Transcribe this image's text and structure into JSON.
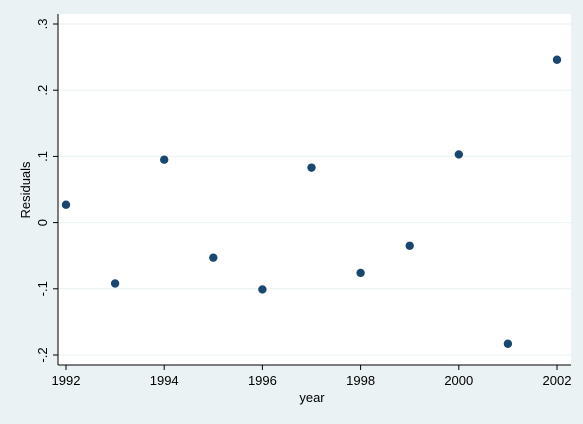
{
  "chart_data": {
    "type": "scatter",
    "title": "",
    "xlabel": "year",
    "ylabel": "Residuals",
    "x": [
      1992,
      1993,
      1994,
      1995,
      1996,
      1997,
      1998,
      1999,
      2000,
      2001,
      2002
    ],
    "y": [
      0.027,
      -0.092,
      0.095,
      -0.053,
      -0.101,
      0.083,
      -0.076,
      -0.035,
      0.103,
      -0.183,
      0.246
    ],
    "xlim": [
      1992,
      2002
    ],
    "ylim": [
      -0.2,
      0.3
    ],
    "xticks": [
      1992,
      1994,
      1996,
      1998,
      2000,
      2002
    ],
    "xtick_labels": [
      "1992",
      "1994",
      "1996",
      "1998",
      "2000",
      "2002"
    ],
    "yticks": [
      -0.2,
      -0.1,
      0,
      0.1,
      0.2,
      0.3
    ],
    "ytick_labels": [
      "-.2",
      "-.1",
      "0",
      ".1",
      ".2",
      ".3"
    ],
    "grid": "horizontal",
    "legend": "none",
    "colors": {
      "background": "#eaf2f3",
      "plot_background": "#ffffff",
      "grid": "#eaf2f3",
      "marker": "#1a476f"
    }
  }
}
